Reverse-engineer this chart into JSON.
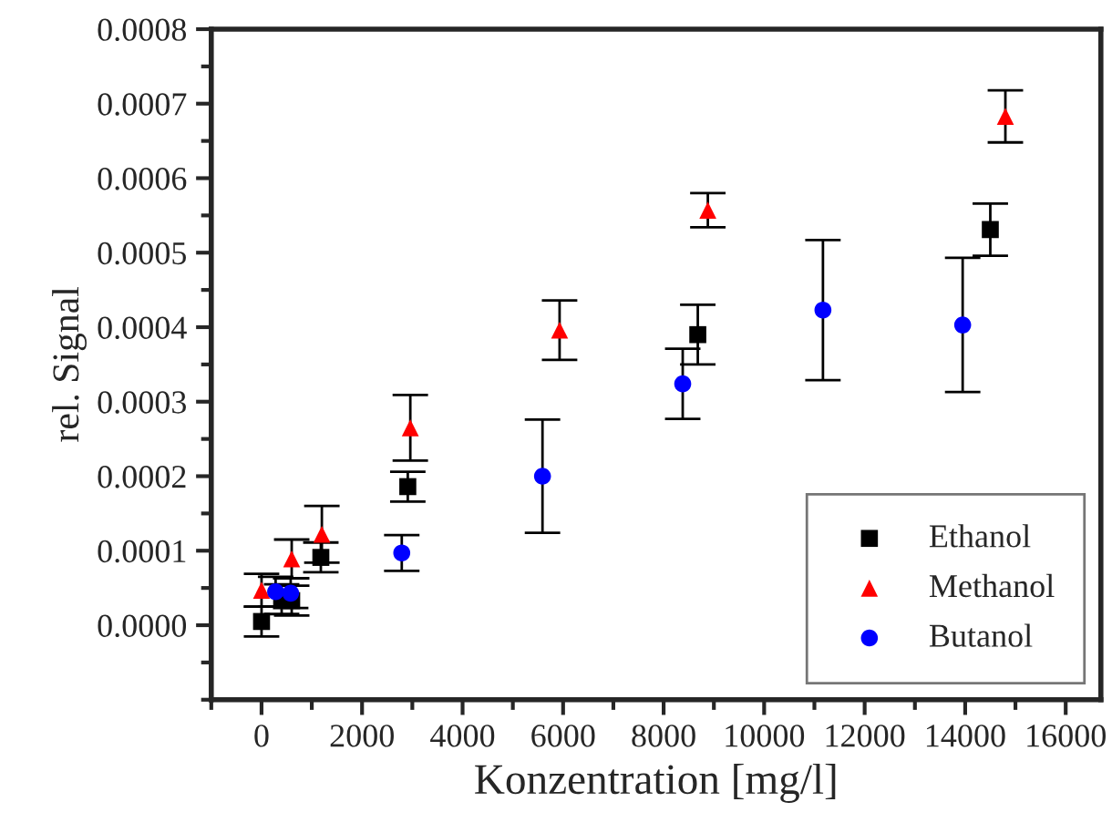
{
  "chart_data": {
    "type": "scatter",
    "xlabel": "Konzentration [mg/l]",
    "ylabel": "rel. Signal",
    "xlim": [
      -1000,
      16700
    ],
    "xticks": [
      0,
      2000,
      4000,
      6000,
      8000,
      10000,
      12000,
      14000,
      16000
    ],
    "ylim": [
      -0.0001,
      0.0008
    ],
    "yticks": [
      {
        "value": 0,
        "label": "0.0000"
      },
      {
        "value": 0.0001,
        "label": "0.0001"
      },
      {
        "value": 0.0002,
        "label": "0.0002"
      },
      {
        "value": 0.0003,
        "label": "0.0003"
      },
      {
        "value": 0.0004,
        "label": "0.0004"
      },
      {
        "value": 0.0005,
        "label": "0.0005"
      },
      {
        "value": 0.0006,
        "label": "0.0006"
      },
      {
        "value": 0.0007,
        "label": "0.0007"
      },
      {
        "value": 0.0008,
        "label": "0.0008"
      }
    ],
    "grid": false,
    "legend": "bottom right",
    "series": [
      {
        "name": "Ethanol",
        "color": "#000000",
        "marker": "square",
        "x": [
          0,
          400,
          600,
          1180,
          2910,
          8680,
          14500
        ],
        "values": [
          5e-06,
          3.5e-05,
          3.3e-05,
          9.1e-05,
          0.000186,
          0.00039,
          0.000531
        ],
        "errors": [
          2e-05,
          2e-05,
          2e-05,
          2e-05,
          2e-05,
          4e-05,
          3.5e-05
        ]
      },
      {
        "name": "Methanol",
        "color": "#ff0000",
        "marker": "triangle",
        "x": [
          0,
          600,
          1200,
          2960,
          5930,
          8880,
          14800
        ],
        "values": [
          4.7e-05,
          8.9e-05,
          0.000122,
          0.000265,
          0.000396,
          0.000557,
          0.000683
        ],
        "errors": [
          2.2e-05,
          2.6e-05,
          3.8e-05,
          4.4e-05,
          4e-05,
          2.3e-05,
          3.5e-05
        ]
      },
      {
        "name": "Butanol",
        "color": "#0000ff",
        "marker": "circle",
        "x": [
          280,
          580,
          2790,
          5590,
          8380,
          11170,
          13950
        ],
        "values": [
          4.5e-05,
          4.3e-05,
          9.7e-05,
          0.0002,
          0.000324,
          0.000423,
          0.000403
        ],
        "errors": [
          2e-05,
          2e-05,
          2.4e-05,
          7.6e-05,
          4.7e-05,
          9.4e-05,
          9e-05
        ]
      }
    ]
  }
}
